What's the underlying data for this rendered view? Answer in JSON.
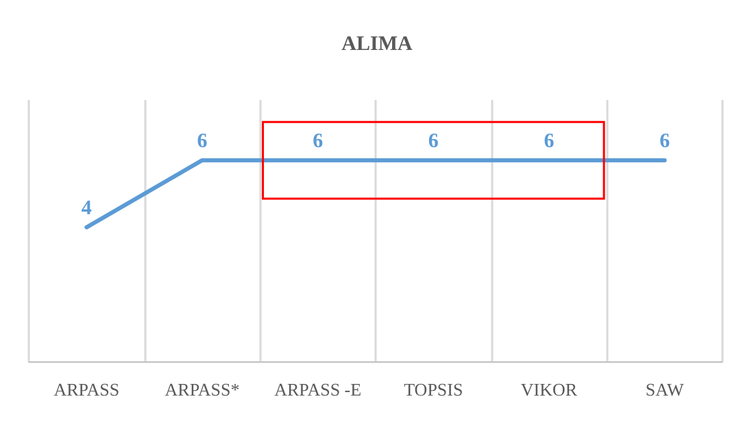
{
  "chart_data": {
    "type": "line",
    "title": "ALIMA",
    "categories": [
      "ARPASS",
      "ARPASS*",
      "ARPASS -E",
      "TOPSIS",
      "VIKOR",
      "SAW"
    ],
    "series": [
      {
        "color": "#5b9bd5",
        "values": [
          4,
          6,
          6,
          6,
          6,
          6
        ]
      }
    ],
    "data_labels": true,
    "marker": "none",
    "line_style": "solid",
    "grid": "x",
    "tick_labels": "x"
  }
}
